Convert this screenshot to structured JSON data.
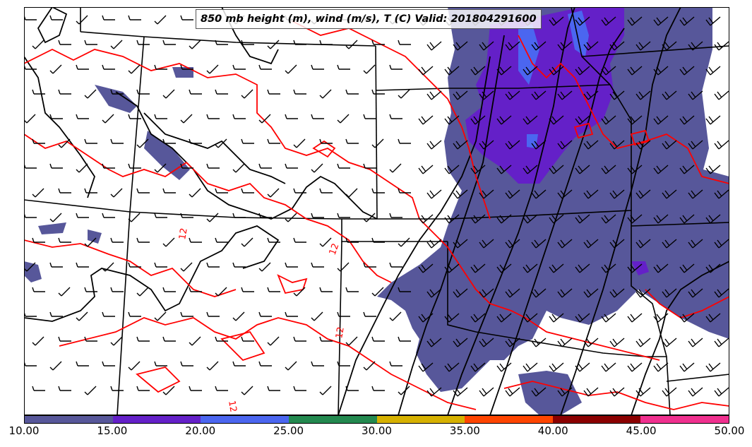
{
  "title": "850 mb height (m), wind (m/s), T (C) Valid: 201804291600",
  "colors": {
    "state_lines": "#000000",
    "temperature_contours": "#ff0000",
    "height_contours": "#000000",
    "wind_barbs": "#000000"
  },
  "colorbar": {
    "colors": [
      "#57579a",
      "#6420c8",
      "#4b66f0",
      "#23894f",
      "#d6b100",
      "#ff4500",
      "#8b0000",
      "#f0308f"
    ],
    "tick_labels": [
      "10.00",
      "15.00",
      "20.00",
      "25.00",
      "30.00",
      "35.00",
      "40.00",
      "45.00",
      "50.00"
    ]
  },
  "contour_labels": [
    "12",
    "12",
    "12",
    "12"
  ]
}
